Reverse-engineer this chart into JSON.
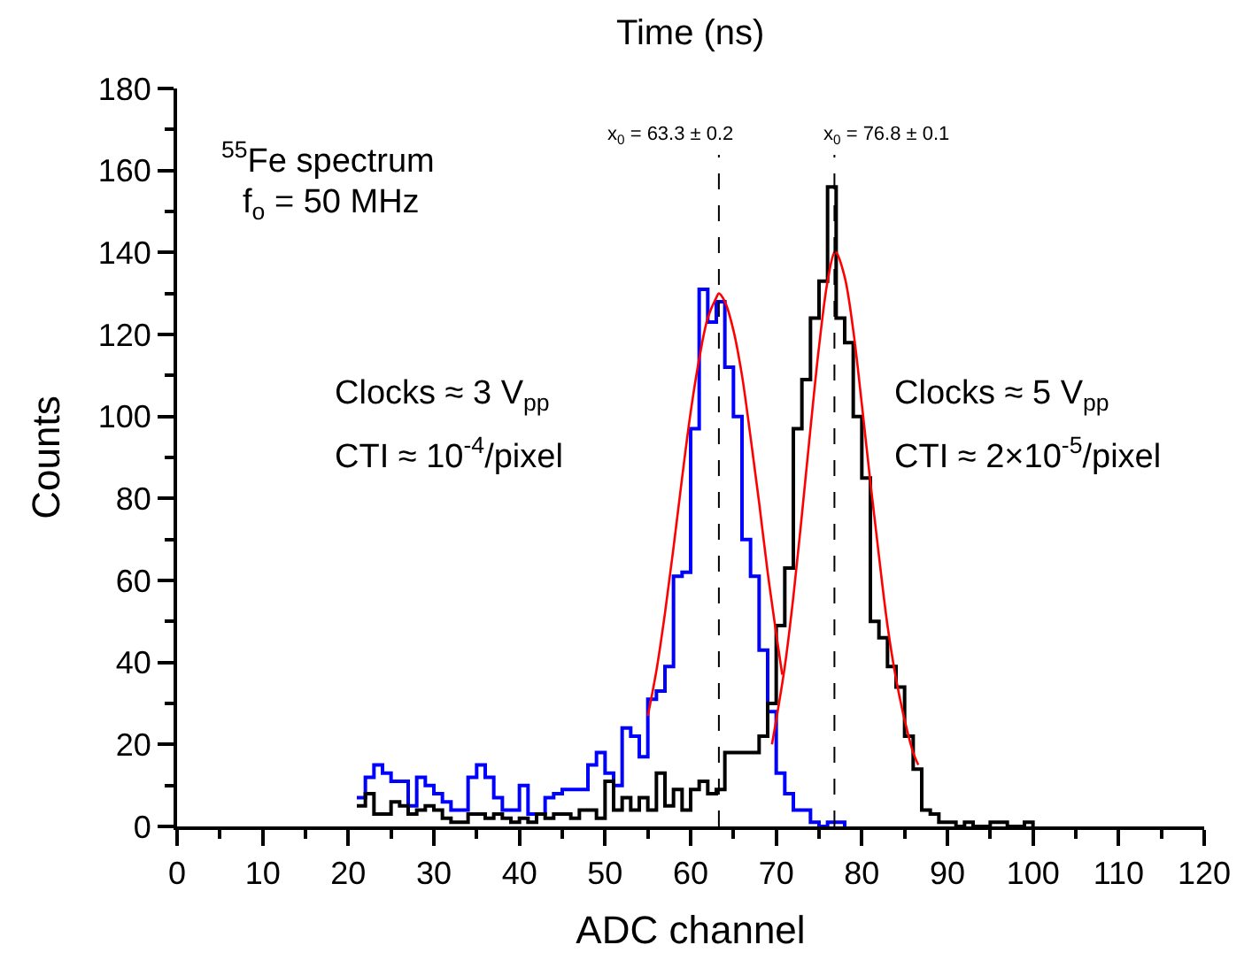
{
  "chart_data": {
    "type": "step",
    "xlabel": "ADC channel",
    "ylabel": "Counts",
    "x2label": "Time (ns)",
    "xlim": [
      0,
      120
    ],
    "ylim": [
      0,
      180
    ],
    "xticks": [
      0,
      {
        "value": 5,
        "label": null
      },
      10,
      {
        "value": 15,
        "label": null
      },
      20,
      {
        "value": 25,
        "label": null
      },
      30,
      {
        "value": 35,
        "label": null
      },
      40,
      {
        "value": 45,
        "label": null
      },
      50,
      {
        "value": 55,
        "label": null
      },
      60,
      {
        "value": 65,
        "label": null
      },
      70,
      {
        "value": 75,
        "label": null
      },
      80,
      {
        "value": 85,
        "label": null
      },
      90,
      {
        "value": 95,
        "label": null
      },
      100,
      {
        "value": 105,
        "label": null
      },
      110,
      {
        "value": 115,
        "label": null
      },
      120
    ],
    "yticks": [
      0,
      {
        "value": 10,
        "label": null
      },
      20,
      {
        "value": 30,
        "label": null
      },
      40,
      {
        "value": 50,
        "label": null
      },
      60,
      {
        "value": 70,
        "label": null
      },
      80,
      {
        "value": 90,
        "label": null
      },
      100,
      {
        "value": 110,
        "label": null
      },
      120,
      {
        "value": 130,
        "label": null
      },
      140,
      {
        "value": 150,
        "label": null
      },
      160,
      {
        "value": 170,
        "label": null
      },
      180
    ],
    "grid": false,
    "line_style": "solid",
    "marker": "none",
    "series": [
      {
        "color": "#0000ff",
        "x": [
          21,
          22,
          23,
          24,
          25,
          26,
          27,
          28,
          29,
          30,
          31,
          32,
          33,
          34,
          35,
          36,
          37,
          38,
          39,
          40,
          41,
          42,
          43,
          44,
          45,
          46,
          47,
          48,
          49,
          50,
          51,
          52,
          53,
          54,
          55,
          56,
          57,
          58,
          59,
          60,
          61,
          62,
          63,
          64,
          65,
          66,
          67,
          68,
          69,
          70,
          71,
          72,
          73,
          74,
          75,
          76,
          77,
          78
        ],
        "values": [
          7,
          12,
          15,
          13,
          11,
          11,
          5,
          12,
          10,
          8,
          6,
          4,
          4,
          12,
          15,
          12,
          7,
          4,
          4,
          10,
          3,
          3,
          7,
          8,
          9,
          9,
          9,
          15,
          18,
          13,
          10,
          24,
          22,
          17,
          31,
          33,
          39,
          61,
          62,
          97,
          131,
          123,
          128,
          112,
          100,
          70,
          61,
          43,
          28,
          13,
          8,
          4,
          4,
          1,
          0,
          1,
          1,
          0
        ]
      },
      {
        "color": "#000000",
        "x": [
          21,
          22,
          23,
          24,
          25,
          26,
          27,
          28,
          29,
          30,
          31,
          32,
          33,
          34,
          35,
          36,
          37,
          38,
          39,
          40,
          41,
          42,
          43,
          44,
          45,
          46,
          47,
          48,
          49,
          50,
          51,
          52,
          53,
          54,
          55,
          56,
          57,
          58,
          59,
          60,
          61,
          62,
          63,
          64,
          65,
          66,
          67,
          68,
          69,
          70,
          71,
          72,
          73,
          74,
          75,
          76,
          77,
          78,
          79,
          80,
          81,
          82,
          83,
          84,
          85,
          86,
          87,
          88,
          89,
          90,
          91,
          92,
          93,
          94,
          95,
          96,
          97,
          98,
          99,
          100
        ],
        "values": [
          5,
          8,
          3,
          3,
          6,
          5,
          3,
          4,
          5,
          4,
          2,
          1,
          1,
          3,
          3,
          2,
          3,
          2,
          1,
          2,
          1,
          3,
          2,
          3,
          3,
          2,
          4,
          4,
          2,
          11,
          4,
          7,
          4,
          7,
          4,
          13,
          5,
          9,
          4,
          9,
          11,
          8,
          9,
          18,
          18,
          18,
          18,
          22,
          30,
          49,
          63,
          97,
          109,
          124,
          133,
          156,
          124,
          118,
          100,
          85,
          50,
          46,
          39,
          34,
          22,
          14,
          4,
          3,
          1,
          1,
          0,
          1,
          0,
          0,
          1,
          1,
          0,
          0,
          1,
          0
        ]
      },
      {
        "type": "line",
        "color": "#ff0000",
        "x": [
          55,
          56,
          57,
          58,
          59,
          60,
          61,
          62,
          63,
          63.3,
          64,
          65,
          66,
          67,
          68,
          69,
          70,
          70.7
        ],
        "values": [
          27,
          38,
          52,
          68,
          85,
          101,
          114,
          124,
          129,
          130,
          128,
          121,
          110,
          95,
          79,
          62,
          47,
          37
        ]
      },
      {
        "type": "line",
        "color": "#ff0000",
        "x": [
          69.5,
          70,
          71,
          72,
          73,
          74,
          75,
          76,
          76.8,
          77,
          78,
          79,
          80,
          81,
          82,
          83,
          84,
          85,
          86,
          86.6
        ],
        "values": [
          20,
          26,
          39,
          56,
          76,
          97,
          117,
          133,
          140,
          140,
          134,
          121,
          103,
          84,
          66,
          49,
          36,
          26,
          18,
          15
        ]
      }
    ],
    "ref_lines": [
      {
        "axis": "x",
        "value": 63.3,
        "label": "x$_{0}$ = 63.3 ± 0.2",
        "color": "#000000",
        "line_style": "dashed"
      },
      {
        "axis": "x",
        "value": 76.8,
        "label": "x$_{0}$ = 76.8 ± 0.1",
        "color": "#000000",
        "line_style": "dashed"
      }
    ],
    "annotations": [
      "$^{55}$Fe spectrum",
      "f$_{o}$ = 50 MHz",
      "Clocks ≈ 3 V$_{pp}$",
      "CTI ≈ 10$^{-4}$/pixel",
      "Clocks ≈ 5 V$_{pp}$",
      "CTI ≈ 2×10$^{-5}$/pixel"
    ]
  }
}
